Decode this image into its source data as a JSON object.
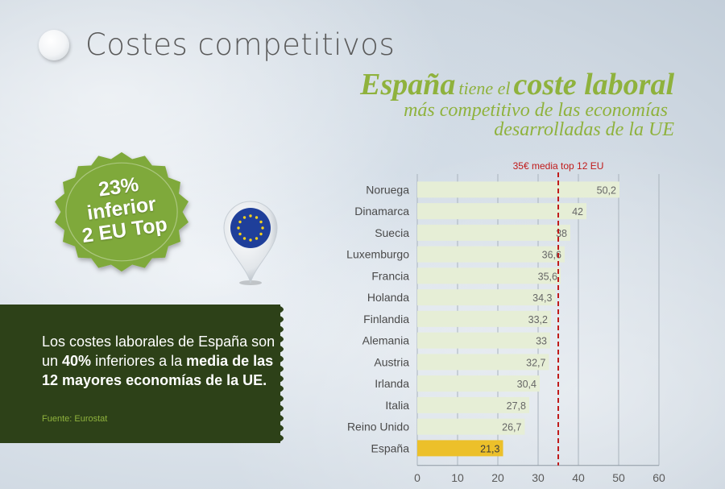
{
  "title": "Costes competitivos",
  "headline": {
    "part1": "España",
    "part2": "tiene el",
    "part3": "coste laboral",
    "line2": "más competitivo de las economías",
    "line3": "desarrolladas de la UE"
  },
  "seal": {
    "line1": "23%",
    "line2": "inferior",
    "line3": "2 EU Top",
    "color": "#7fa93a"
  },
  "note": {
    "text_a": "Los costes laborales de España son  un ",
    "bold_a": "40%",
    "text_b": " inferiores a la ",
    "bold_b": "media de las 12 mayores economías de la UE.",
    "source": "Fuente: Eurostat"
  },
  "chart_data": {
    "type": "bar",
    "orientation": "horizontal",
    "categories": [
      "Noruega",
      "Dinamarca",
      "Suecia",
      "Luxemburgo",
      "Francia",
      "Holanda",
      "Finlandia",
      "Alemania",
      "Austria",
      "Irlanda",
      "Italia",
      "Reino Unido",
      "España"
    ],
    "values": [
      50.2,
      42,
      38,
      36.6,
      35.6,
      34.3,
      33.2,
      33,
      32.7,
      30.4,
      27.8,
      26.7,
      21.3
    ],
    "value_labels": [
      "50,2",
      "42",
      "38",
      "36,6",
      "35,6",
      "34,3",
      "33,2",
      "33",
      "32,7",
      "30,4",
      "27,8",
      "26,7",
      "21,3"
    ],
    "xlim": [
      0,
      60
    ],
    "xticks": [
      0,
      10,
      20,
      30,
      40,
      50,
      60
    ],
    "reference_line": {
      "value": 35,
      "label": "35€ media top 12 EU",
      "color": "#c01a1a"
    },
    "bar_color": "#e6eed6",
    "highlight_color": "#ecc02a",
    "highlight_category": "España",
    "grid": true
  }
}
